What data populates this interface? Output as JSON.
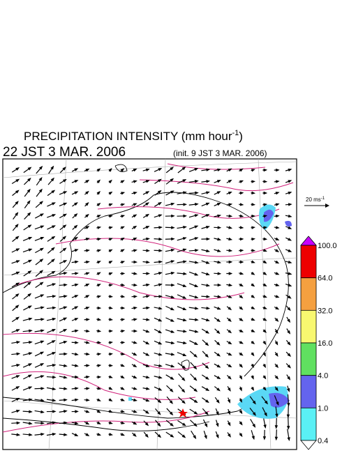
{
  "header": {
    "title": "PRECIPITATION INTENSITY (mm hour",
    "title_exponent": "-1",
    "title_close": ")",
    "valid_time": "22 JST 3 MAR. 2006",
    "init_time": "(init. 9 JST 3 MAR. 2006)"
  },
  "wind_scale": {
    "label": "20 ms",
    "label_exponent": "-1"
  },
  "colorbar": {
    "levels": [
      "100.0",
      "64.0",
      "32.0",
      "16.0",
      "4.0",
      "1.0",
      "0.4"
    ]
  }
}
